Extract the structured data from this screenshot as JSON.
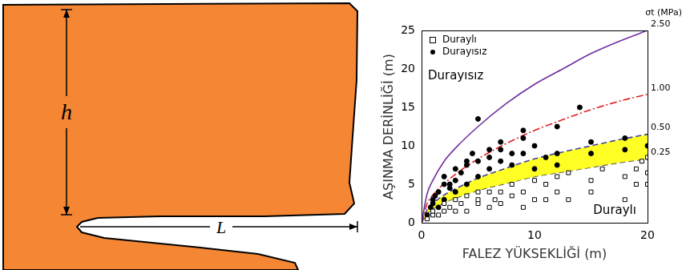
{
  "diagram": {
    "height_label": "h",
    "length_label": "L"
  },
  "chart_data": {
    "type": "scatter",
    "x_label": "FALEZ YÜKSEKLİĞİ (m)",
    "y_label": "AŞINMA DERİNLİĞİ (m)",
    "xlim": [
      0,
      20
    ],
    "xticks": [
      0,
      10,
      20
    ],
    "ylim": [
      0,
      25
    ],
    "yticks": [
      0,
      5,
      10,
      15,
      20,
      25
    ],
    "grid": false,
    "legend": "upper left",
    "annotations": [
      "Durayısız",
      "Duraylı"
    ],
    "curve_label_title": "σt (MPa)",
    "series": [
      {
        "name": "Duraylı",
        "type": "scatter",
        "marker": "square_open",
        "color": "#000000",
        "x": [
          0.5,
          1,
          1,
          1.5,
          2,
          2,
          2.5,
          3,
          3,
          3.5,
          4,
          4,
          5,
          5,
          5,
          6,
          6,
          6.5,
          7,
          7,
          8,
          8,
          9,
          9,
          10,
          10,
          11,
          11,
          12,
          12,
          13,
          13,
          15,
          15,
          16,
          18,
          18,
          19,
          19,
          20,
          20,
          19.5,
          20
        ],
        "values": [
          0.5,
          1,
          1.5,
          1,
          1.5,
          2.5,
          2,
          1.5,
          3,
          2.5,
          1.5,
          3.5,
          2.5,
          4,
          3,
          2,
          4,
          3,
          4,
          2.5,
          3.5,
          5,
          4,
          2,
          3,
          5.5,
          5,
          3,
          4,
          6,
          6.5,
          3,
          5.5,
          4,
          7,
          6,
          3,
          5,
          7,
          5,
          6.5,
          8,
          8.5
        ]
      },
      {
        "name": "Durayısız",
        "type": "scatter",
        "marker": "circle",
        "color": "#000000",
        "x": [
          0.5,
          0.8,
          1,
          1,
          1.2,
          1.5,
          1.5,
          2,
          2,
          2,
          2.5,
          2.5,
          3,
          3,
          3,
          3.5,
          4,
          4,
          4,
          4.5,
          5,
          5,
          5,
          6,
          6,
          6,
          7,
          7,
          7,
          8,
          8,
          9,
          9,
          9,
          10,
          10,
          11,
          12,
          12,
          12,
          14,
          15,
          15,
          18,
          18,
          20
        ],
        "values": [
          1,
          2,
          3,
          2.5,
          3.5,
          2,
          4,
          3,
          5,
          6,
          4.5,
          5,
          4,
          5.5,
          7,
          6.5,
          5,
          7.5,
          8,
          9,
          6,
          8,
          13.5,
          7,
          9.5,
          8.5,
          8,
          9.5,
          10.5,
          9,
          7.5,
          9,
          11,
          12,
          7,
          10,
          8.5,
          7.5,
          12.5,
          9,
          15,
          9,
          10.5,
          11,
          9.5,
          10
        ]
      },
      {
        "name": "2.50",
        "type": "line",
        "line_style": "solid",
        "color": "#7030a0",
        "x": [
          0,
          0.5,
          1,
          2,
          3,
          5,
          7.5,
          10,
          12.5,
          15,
          17.5,
          20
        ],
        "values": [
          0,
          3.8,
          5.5,
          8,
          9.7,
          12.5,
          15.5,
          18,
          20,
          22,
          23.6,
          25
        ]
      },
      {
        "name": "1.00",
        "type": "line",
        "line_style": "dashdot",
        "color": "#e02020",
        "x": [
          0,
          0.5,
          1,
          2,
          3,
          5,
          7.5,
          10,
          12.5,
          15,
          17.5,
          20
        ],
        "values": [
          0,
          2.5,
          3.6,
          5.1,
          6.3,
          8.3,
          10.3,
          12,
          13.4,
          14.7,
          15.8,
          16.7
        ]
      },
      {
        "name": "0.50",
        "type": "line",
        "line_style": "dashed",
        "color": "#4040a0",
        "x": [
          0,
          0.5,
          1,
          2,
          3,
          5,
          7.5,
          10,
          12.5,
          15,
          17.5,
          20
        ],
        "values": [
          0,
          1.7,
          2.5,
          3.6,
          4.4,
          5.8,
          7.1,
          8.3,
          9.2,
          10,
          10.8,
          11.5
        ]
      },
      {
        "name": "0.25",
        "type": "line",
        "line_style": "dashed",
        "color": "#505050",
        "x": [
          0,
          0.5,
          1,
          2,
          3,
          5,
          7.5,
          10,
          12.5,
          15,
          17.5,
          20
        ],
        "values": [
          0,
          1.2,
          1.8,
          2.6,
          3.2,
          4.2,
          5.1,
          6,
          6.6,
          7.2,
          7.8,
          8.3
        ]
      }
    ]
  }
}
